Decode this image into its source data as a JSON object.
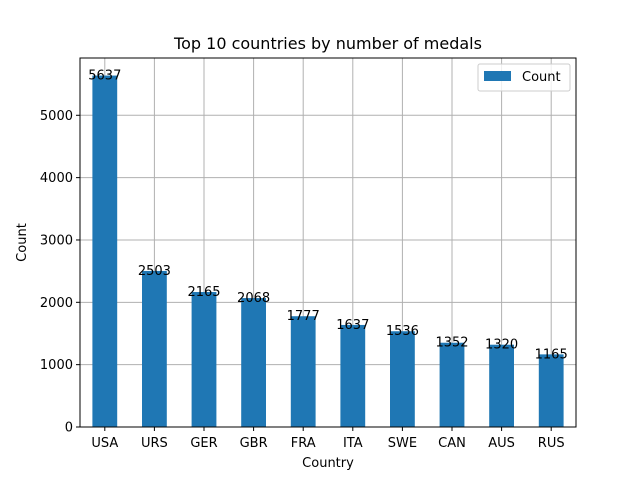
{
  "chart_data": {
    "type": "bar",
    "title": "Top 10 countries by number of medals",
    "xlabel": "Country",
    "ylabel": "Count",
    "categories": [
      "USA",
      "URS",
      "GER",
      "GBR",
      "FRA",
      "ITA",
      "SWE",
      "CAN",
      "AUS",
      "RUS"
    ],
    "series": [
      {
        "name": "Count",
        "values": [
          5637,
          2503,
          2165,
          2068,
          1777,
          1637,
          1536,
          1352,
          1320,
          1165
        ]
      }
    ],
    "ylim": [
      0,
      5918.85
    ],
    "yticks": [
      0,
      1000,
      2000,
      3000,
      4000,
      5000
    ],
    "grid": true,
    "legend_position": "top-right",
    "bar_color": "#1f77b4"
  }
}
